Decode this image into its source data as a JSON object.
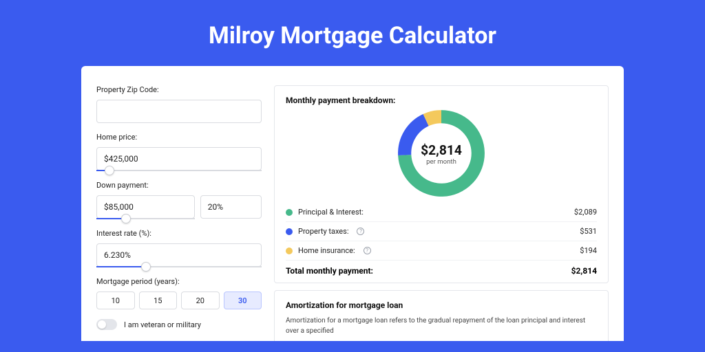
{
  "page": {
    "title": "Milroy Mortgage Calculator"
  },
  "background_color": "#3a5bef",
  "card_background": "#ffffff",
  "form": {
    "zip": {
      "label": "Property Zip Code:",
      "value": ""
    },
    "price": {
      "label": "Home price:",
      "value": "$425,000",
      "slider_pct": 8
    },
    "down": {
      "label": "Down payment:",
      "amount": "$85,000",
      "percent": "20%",
      "slider_pct": 20
    },
    "rate": {
      "label": "Interest rate (%):",
      "value": "6.230%",
      "slider_pct": 30
    },
    "period": {
      "label": "Mortgage period (years):",
      "options": [
        "10",
        "15",
        "20",
        "30"
      ],
      "active": "30"
    },
    "veteran": {
      "label": "I am veteran or military",
      "checked": false
    }
  },
  "breakdown": {
    "title": "Monthly payment breakdown:",
    "center_value": "$2,814",
    "center_sub": "per month",
    "rows": [
      {
        "label": "Principal & Interest:",
        "value": "$2,089",
        "color": "#46b98b",
        "info": false
      },
      {
        "label": "Property taxes:",
        "value": "$531",
        "color": "#3a5bef",
        "info": true
      },
      {
        "label": "Home insurance:",
        "value": "$194",
        "color": "#f4c95d",
        "info": true
      }
    ],
    "total_label": "Total monthly payment:",
    "total_value": "$2,814",
    "donut": {
      "type": "pie",
      "colors": [
        "#46b98b",
        "#3a5bef",
        "#f4c95d"
      ],
      "values": [
        2089,
        531,
        194
      ],
      "stroke_width": 18,
      "radius": 50,
      "bg": "#ffffff"
    }
  },
  "amort": {
    "title": "Amortization for mortgage loan",
    "text": "Amortization for a mortgage loan refers to the gradual repayment of the loan principal and interest over a specified"
  }
}
